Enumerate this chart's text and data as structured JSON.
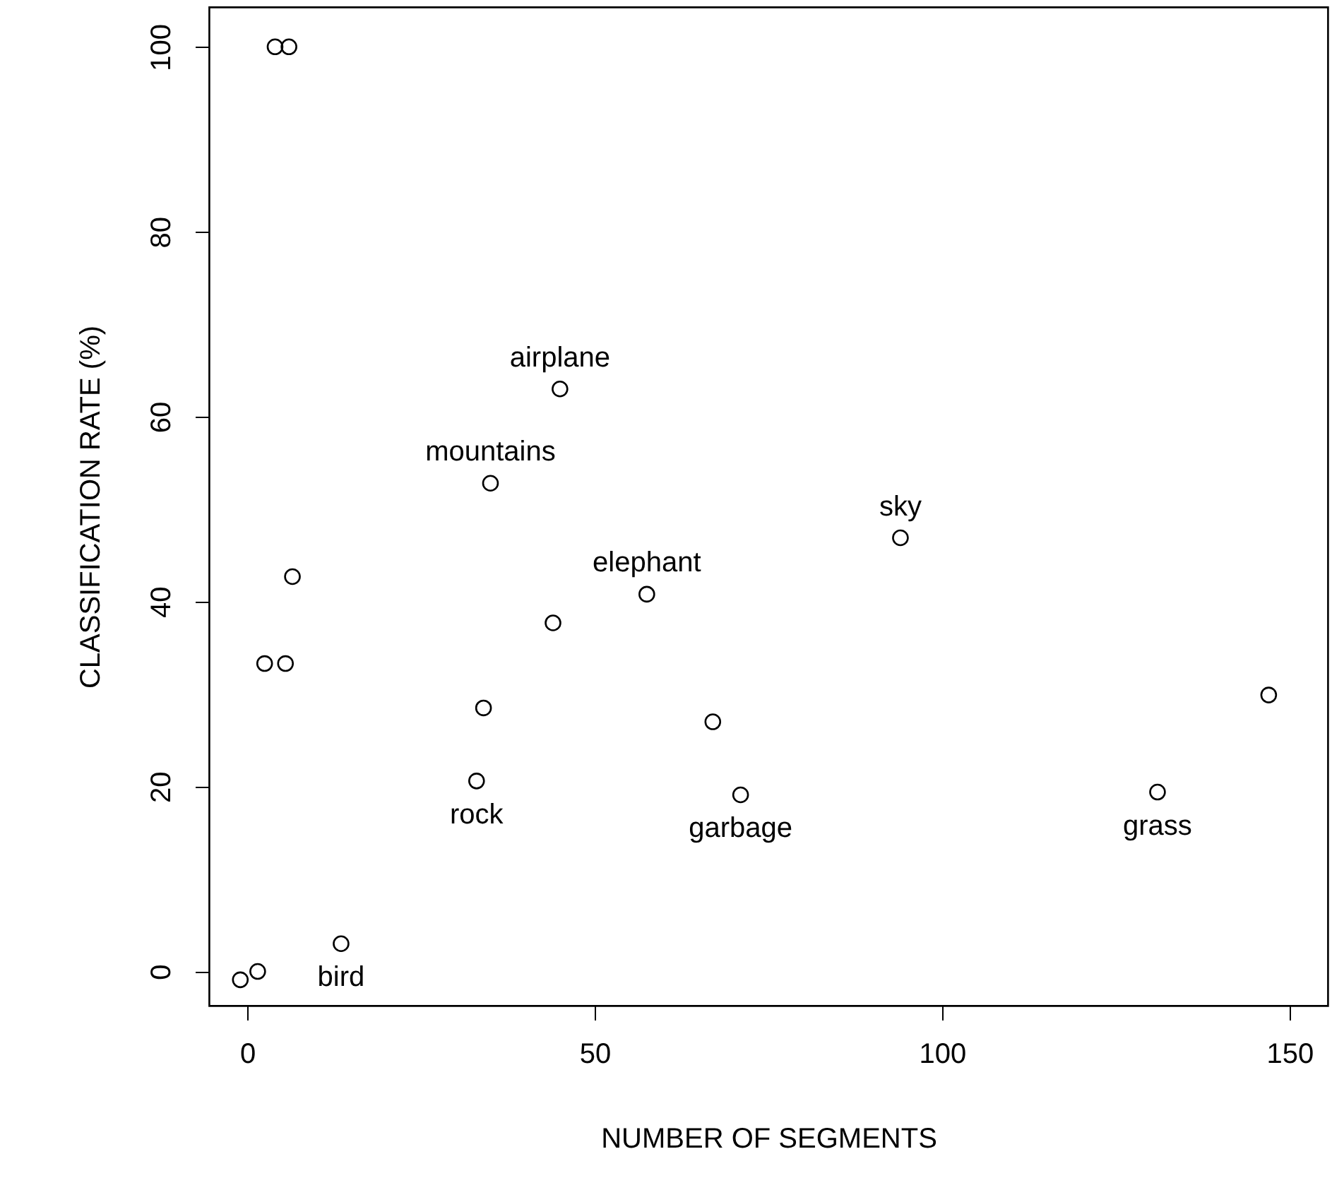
{
  "chart_data": {
    "type": "scatter",
    "xlabel": "NUMBER OF SEGMENTS",
    "ylabel": "CLASSIFICATION RATE (%)",
    "x": [
      4,
      6,
      45,
      35,
      94,
      6.5,
      57.5,
      44,
      2.5,
      5.5,
      34,
      67,
      147,
      33,
      71,
      131,
      13.5,
      1.5,
      -1
    ],
    "values": [
      100,
      100,
      63,
      52.8,
      46.9,
      42.7,
      40.8,
      37.7,
      33.3,
      33.3,
      28.5,
      27,
      29.9,
      20.6,
      19.1,
      19.4,
      3,
      0,
      -0.9
    ],
    "color": "#000000",
    "marker": "circle",
    "xlim": [
      -5.5,
      155.5
    ],
    "ylim": [
      -3.7,
      104.3
    ],
    "xticks": [
      0,
      50,
      100,
      150
    ],
    "yticks": [
      0,
      20,
      40,
      60,
      80,
      100
    ],
    "grid": false,
    "annotations": [
      {
        "text": "airplane",
        "x": 45,
        "y": 63
      },
      {
        "text": "mountains",
        "x": 35,
        "y": 52.8
      },
      {
        "text": "sky",
        "x": 94,
        "y": 46.9
      },
      {
        "text": "elephant",
        "x": 57.5,
        "y": 40.8
      },
      {
        "text": "rock",
        "x": 33,
        "y": 20.6
      },
      {
        "text": "garbage",
        "x": 71,
        "y": 19.1
      },
      {
        "text": "grass",
        "x": 131,
        "y": 19.4
      },
      {
        "text": "bird",
        "x": 13.5,
        "y": 3
      }
    ]
  }
}
